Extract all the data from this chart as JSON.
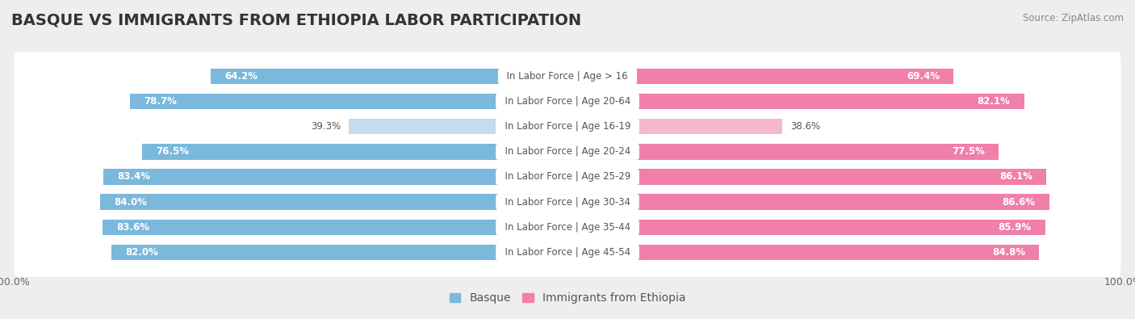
{
  "title": "BASQUE VS IMMIGRANTS FROM ETHIOPIA LABOR PARTICIPATION",
  "source": "Source: ZipAtlas.com",
  "categories": [
    "In Labor Force | Age > 16",
    "In Labor Force | Age 20-64",
    "In Labor Force | Age 16-19",
    "In Labor Force | Age 20-24",
    "In Labor Force | Age 25-29",
    "In Labor Force | Age 30-34",
    "In Labor Force | Age 35-44",
    "In Labor Force | Age 45-54"
  ],
  "basque_values": [
    64.2,
    78.7,
    39.3,
    76.5,
    83.4,
    84.0,
    83.6,
    82.0
  ],
  "ethiopia_values": [
    69.4,
    82.1,
    38.6,
    77.5,
    86.1,
    86.6,
    85.9,
    84.8
  ],
  "basque_color": "#7ab8dc",
  "basque_color_light": "#c5dcee",
  "ethiopia_color": "#f07faa",
  "ethiopia_color_light": "#f5b8d0",
  "bg_color": "#eeeeee",
  "row_bg": "#ffffff",
  "bar_height": 0.62,
  "max_val": 100.0,
  "title_fontsize": 14,
  "label_fontsize": 8.5,
  "value_fontsize": 8.5,
  "legend_fontsize": 10,
  "tick_fontsize": 9,
  "title_color": "#333333",
  "source_color": "#888888",
  "label_color": "#555555",
  "value_color_dark": "#ffffff",
  "value_color_light": "#555555"
}
